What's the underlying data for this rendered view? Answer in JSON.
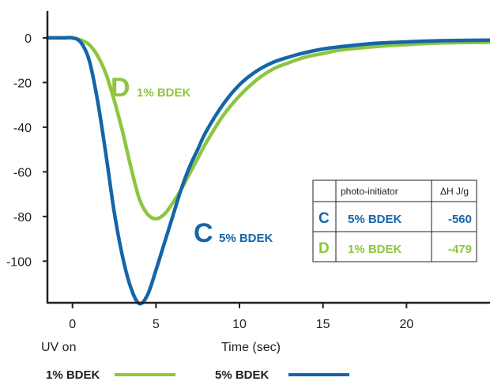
{
  "chart_data": {
    "type": "line",
    "xlabel": "Time (sec)",
    "x_start_label": "UV on",
    "xlim": [
      -1.5,
      25
    ],
    "ylim": [
      -119,
      12
    ],
    "x_ticks": [
      0,
      5,
      10,
      15,
      20
    ],
    "y_ticks": [
      0,
      -20,
      -40,
      -60,
      -80,
      -100
    ],
    "grid": false,
    "legend_position": "bottom",
    "series": [
      {
        "name": "1% BDEK",
        "label_letter": "D",
        "label_text": "1% BDEK",
        "color": "#8dc63f",
        "x": [
          -1.5,
          -0.5,
          0,
          0.5,
          1,
          1.5,
          2,
          2.5,
          3,
          3.5,
          4,
          4.5,
          5,
          5.5,
          6,
          6.5,
          7,
          7.5,
          8,
          9,
          10,
          11,
          12,
          13,
          14,
          15,
          16,
          18,
          20,
          22,
          25
        ],
        "y": [
          0,
          0,
          0,
          -1,
          -3,
          -8,
          -16,
          -28,
          -42,
          -58,
          -72,
          -79,
          -81,
          -79,
          -74,
          -68,
          -61,
          -54,
          -47,
          -35,
          -26,
          -19,
          -14,
          -11,
          -8.5,
          -7,
          -5.5,
          -4,
          -3,
          -2.3,
          -2
        ]
      },
      {
        "name": "5% BDEK",
        "label_letter": "C",
        "label_text": "5% BDEK",
        "color": "#1565a8",
        "x": [
          -1.5,
          -0.5,
          0,
          0.5,
          1,
          1.5,
          2,
          2.5,
          3,
          3.5,
          4,
          4.5,
          5,
          5.5,
          6,
          6.5,
          7,
          7.5,
          8,
          9,
          10,
          11,
          12,
          13,
          14,
          15,
          16,
          18,
          20,
          22,
          25
        ],
        "y": [
          0,
          0,
          0,
          -2,
          -10,
          -28,
          -52,
          -78,
          -98,
          -112,
          -119,
          -115,
          -104,
          -92,
          -80,
          -68,
          -58,
          -50,
          -42,
          -30,
          -21,
          -15,
          -11,
          -8.5,
          -6.5,
          -5,
          -4,
          -2.5,
          -1.8,
          -1.3,
          -1
        ]
      }
    ],
    "table": {
      "headers": [
        "",
        "photo-initiator",
        "ΔH J/g"
      ],
      "rows": [
        {
          "letter": "C",
          "initiator": "5% BDEK",
          "value": "-560",
          "color": "#1565a8"
        },
        {
          "letter": "D",
          "initiator": "1% BDEK",
          "value": "-479",
          "color": "#8dc63f"
        }
      ]
    }
  }
}
